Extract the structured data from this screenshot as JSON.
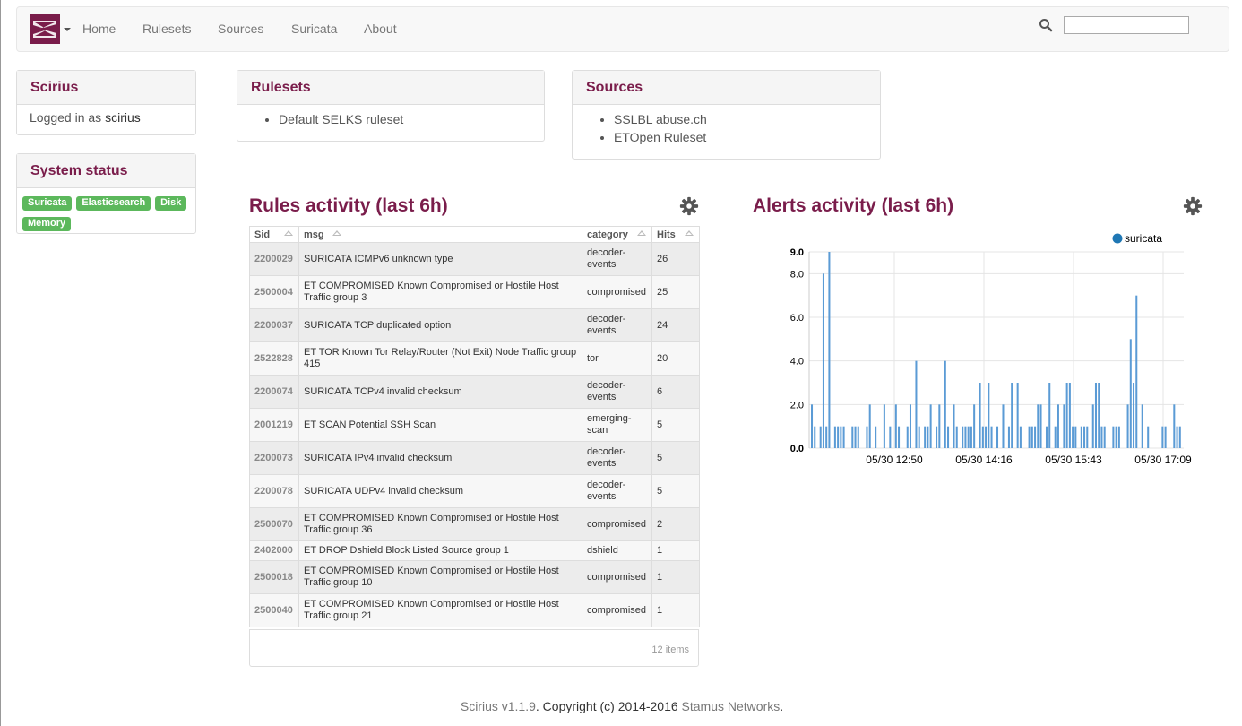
{
  "nav": {
    "items": [
      "Home",
      "Rulesets",
      "Sources",
      "Suricata",
      "About"
    ],
    "search_value": ""
  },
  "scirius_panel": {
    "title": "Scirius",
    "logged_prefix": "Logged in as",
    "user": "scirius"
  },
  "status_panel": {
    "title": "System status",
    "badges": [
      "Suricata",
      "Elasticsearch",
      "Disk",
      "Memory"
    ]
  },
  "rulesets_panel": {
    "title": "Rulesets",
    "items": [
      "Default SELKS ruleset"
    ]
  },
  "sources_panel": {
    "title": "Sources",
    "items": [
      "SSLBL abuse.ch",
      "ETOpen Ruleset"
    ]
  },
  "rules_activity": {
    "title": "Rules activity (last 6h)",
    "columns": [
      "Sid",
      "msg",
      "category",
      "Hits"
    ],
    "rows": [
      [
        "2200029",
        "SURICATA ICMPv6 unknown type",
        "decoder-events",
        "26"
      ],
      [
        "2500004",
        "ET COMPROMISED Known Compromised or Hostile Host Traffic group 3",
        "compromised",
        "25"
      ],
      [
        "2200037",
        "SURICATA TCP duplicated option",
        "decoder-events",
        "24"
      ],
      [
        "2522828",
        "ET TOR Known Tor Relay/Router (Not Exit) Node Traffic group 415",
        "tor",
        "20"
      ],
      [
        "2200074",
        "SURICATA TCPv4 invalid checksum",
        "decoder-events",
        "6"
      ],
      [
        "2001219",
        "ET SCAN Potential SSH Scan",
        "emerging-scan",
        "5"
      ],
      [
        "2200073",
        "SURICATA IPv4 invalid checksum",
        "decoder-events",
        "5"
      ],
      [
        "2200078",
        "SURICATA UDPv4 invalid checksum",
        "decoder-events",
        "5"
      ],
      [
        "2500070",
        "ET COMPROMISED Known Compromised or Hostile Host Traffic group 36",
        "compromised",
        "2"
      ],
      [
        "2402000",
        "ET DROP Dshield Block Listed Source group 1",
        "dshield",
        "1"
      ],
      [
        "2500018",
        "ET COMPROMISED Known Compromised or Hostile Host Traffic group 10",
        "compromised",
        "1"
      ],
      [
        "2500040",
        "ET COMPROMISED Known Compromised or Hostile Host Traffic group 21",
        "compromised",
        "1"
      ]
    ],
    "footer": "12 items"
  },
  "alerts_activity": {
    "title": "Alerts activity (last 6h)"
  },
  "chart_data": {
    "type": "bar",
    "series": [
      {
        "name": "suricata",
        "color": "#1f77b4",
        "values": [
          2,
          1,
          0,
          1,
          8,
          1,
          9,
          0,
          1,
          1,
          1,
          1,
          0,
          0,
          1,
          1,
          1,
          0,
          0,
          1,
          2,
          0,
          1,
          0,
          0,
          2,
          0,
          1,
          0,
          2,
          1,
          0,
          0,
          1,
          2,
          0,
          4,
          1,
          0,
          1,
          1,
          2,
          0,
          1,
          2,
          0,
          4,
          1,
          0,
          2,
          1,
          0,
          1,
          1,
          1,
          1,
          2,
          0,
          3,
          1,
          1,
          3,
          1,
          0,
          1,
          0,
          2,
          0,
          1,
          3,
          0,
          3,
          1,
          0,
          0,
          1,
          1,
          1,
          2,
          2,
          0,
          1,
          3,
          0,
          1,
          2,
          0,
          2,
          3,
          3,
          1,
          1,
          0,
          1,
          1,
          1,
          0,
          2,
          3,
          3,
          1,
          1,
          0,
          0,
          1,
          1,
          1,
          0,
          0,
          2,
          5,
          3,
          7,
          0,
          2,
          0,
          1,
          0,
          0,
          0,
          0,
          1,
          1,
          0,
          0,
          2,
          1,
          1
        ]
      }
    ],
    "ylim": [
      0,
      9
    ],
    "yticks": [
      "0.0",
      "2.0",
      "4.0",
      "6.0",
      "8.0",
      "9.0"
    ],
    "xticks": [
      "05/30 12:50",
      "05/30 14:16",
      "05/30 15:43",
      "05/30 17:09"
    ],
    "legend": "top-right",
    "grid": true
  },
  "footer": {
    "app": "Scirius v1.1.9",
    "copyright": ". Copyright (c) 2014-2016 ",
    "company": "Stamus Networks",
    "end": "."
  }
}
